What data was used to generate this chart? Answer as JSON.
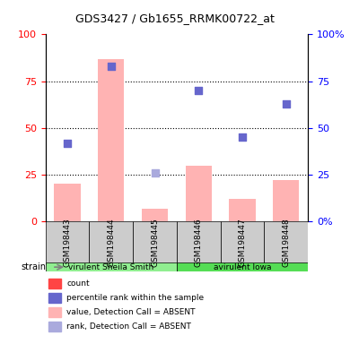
{
  "title": "GDS3427 / Gb1655_RRMK00722_at",
  "samples": [
    "GSM198443",
    "GSM198444",
    "GSM198445",
    "GSM198446",
    "GSM198447",
    "GSM198448"
  ],
  "groups": [
    "virulent Sheila Smith",
    "virulent Sheila Smith",
    "virulent Sheila Smith",
    "avirulent Iowa",
    "avirulent Iowa",
    "avirulent Iowa"
  ],
  "bar_values": [
    20,
    87,
    7,
    30,
    12,
    22
  ],
  "bar_color_absent": "#ffb3b3",
  "bar_color_present": "#ff4444",
  "scatter_rank_absent": [
    26,
    25,
    28,
    null,
    null,
    null
  ],
  "scatter_rank_present": [
    null,
    null,
    null,
    70,
    45,
    63
  ],
  "scatter_value_absent": [
    42,
    83,
    null,
    null,
    null,
    null
  ],
  "scatter_value_present": [
    null,
    null,
    null,
    null,
    null,
    null
  ],
  "ylim_left": [
    0,
    100
  ],
  "ylim_right": [
    0,
    100
  ],
  "yticks_left": [
    0,
    25,
    50,
    75,
    100
  ],
  "yticks_right": [
    0,
    25,
    50,
    75,
    100
  ],
  "ytick_labels_left": [
    "0",
    "25",
    "50",
    "75",
    "100"
  ],
  "ytick_labels_right": [
    "0%",
    "25",
    "50",
    "75",
    "100%"
  ],
  "group_colors": {
    "virulent Sheila Smith": "#90ee90",
    "avirulent Iowa": "#32cd32"
  },
  "group_label_row": "strain",
  "legend_items": [
    {
      "label": "count",
      "color": "#ff4444",
      "marker": "s"
    },
    {
      "label": "percentile rank within the sample",
      "color": "#6666cc",
      "marker": "s"
    },
    {
      "label": "value, Detection Call = ABSENT",
      "color": "#ffb3b3",
      "marker": "s"
    },
    {
      "label": "rank, Detection Call = ABSENT",
      "color": "#aaaadd",
      "marker": "s"
    }
  ],
  "absent_flags": [
    true,
    true,
    true,
    true,
    true,
    true
  ],
  "rank_scatter_y": [
    42,
    83,
    26,
    70,
    45,
    63
  ],
  "rank_absent": [
    true,
    true,
    true,
    false,
    false,
    false
  ],
  "percentile_scatter_y": [
    42,
    83,
    26,
    70,
    45,
    63
  ],
  "dotted_lines": [
    25,
    50,
    75
  ]
}
